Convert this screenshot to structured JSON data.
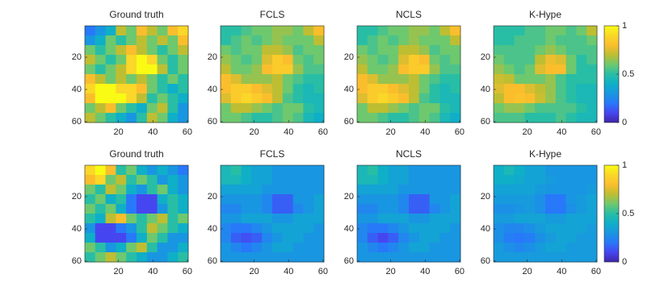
{
  "chart_data": [
    {
      "type": "heatmap",
      "title": "Ground truth",
      "colormap": "parula",
      "clim": [
        0,
        1
      ],
      "xlim": [
        0.5,
        60.5
      ],
      "ylim": [
        0.5,
        60.5
      ],
      "y_reversed": true,
      "xticks": [
        20,
        40,
        60
      ],
      "yticks": [
        20,
        40,
        60
      ],
      "z": [
        [
          0.2,
          0.3,
          0.4,
          0.7,
          0.6,
          0.8,
          0.7,
          0.6,
          0.8,
          0.9
        ],
        [
          0.3,
          0.4,
          0.6,
          0.5,
          0.6,
          0.7,
          0.6,
          0.7,
          0.6,
          0.8
        ],
        [
          0.6,
          0.5,
          0.6,
          0.7,
          0.8,
          0.7,
          0.6,
          0.5,
          0.6,
          0.7
        ],
        [
          0.7,
          0.6,
          0.5,
          0.6,
          0.9,
          1.0,
          0.9,
          0.6,
          0.5,
          0.6
        ],
        [
          0.6,
          0.5,
          0.6,
          0.7,
          0.9,
          1.0,
          1.0,
          0.7,
          0.5,
          0.6
        ],
        [
          0.8,
          0.7,
          0.6,
          0.7,
          0.6,
          0.7,
          0.6,
          0.5,
          0.6,
          0.5
        ],
        [
          0.9,
          1.0,
          1.0,
          0.9,
          0.9,
          0.8,
          0.6,
          0.5,
          0.4,
          0.5
        ],
        [
          0.8,
          1.0,
          1.0,
          1.0,
          0.9,
          0.7,
          0.5,
          0.6,
          0.5,
          0.4
        ],
        [
          0.6,
          0.7,
          0.8,
          0.6,
          0.5,
          0.4,
          0.6,
          0.7,
          0.5,
          0.3
        ],
        [
          0.7,
          0.6,
          0.5,
          0.4,
          0.3,
          0.5,
          0.7,
          0.6,
          0.4,
          0.3
        ]
      ]
    },
    {
      "type": "heatmap",
      "title": "FCLS",
      "colormap": "parula",
      "clim": [
        0,
        1
      ],
      "xlim": [
        0.5,
        60.5
      ],
      "ylim": [
        0.5,
        60.5
      ],
      "y_reversed": true,
      "xticks": [
        20,
        40,
        60
      ],
      "yticks": [
        20,
        40,
        60
      ],
      "z": [
        [
          0.5,
          0.5,
          0.55,
          0.6,
          0.6,
          0.65,
          0.65,
          0.6,
          0.7,
          0.8
        ],
        [
          0.5,
          0.55,
          0.6,
          0.55,
          0.6,
          0.65,
          0.6,
          0.6,
          0.6,
          0.7
        ],
        [
          0.6,
          0.55,
          0.6,
          0.6,
          0.7,
          0.7,
          0.65,
          0.55,
          0.6,
          0.6
        ],
        [
          0.65,
          0.6,
          0.55,
          0.6,
          0.75,
          0.85,
          0.8,
          0.6,
          0.55,
          0.6
        ],
        [
          0.7,
          0.6,
          0.6,
          0.65,
          0.8,
          0.85,
          0.85,
          0.65,
          0.55,
          0.55
        ],
        [
          0.8,
          0.75,
          0.65,
          0.65,
          0.65,
          0.7,
          0.6,
          0.55,
          0.5,
          0.5
        ],
        [
          0.8,
          0.85,
          0.85,
          0.8,
          0.75,
          0.7,
          0.6,
          0.5,
          0.45,
          0.5
        ],
        [
          0.75,
          0.85,
          0.9,
          0.85,
          0.8,
          0.7,
          0.55,
          0.5,
          0.45,
          0.45
        ],
        [
          0.6,
          0.7,
          0.7,
          0.65,
          0.6,
          0.55,
          0.6,
          0.6,
          0.5,
          0.45
        ],
        [
          0.6,
          0.6,
          0.55,
          0.5,
          0.5,
          0.55,
          0.6,
          0.55,
          0.45,
          0.4
        ]
      ]
    },
    {
      "type": "heatmap",
      "title": "NCLS",
      "colormap": "parula",
      "clim": [
        0,
        1
      ],
      "xlim": [
        0.5,
        60.5
      ],
      "ylim": [
        0.5,
        60.5
      ],
      "y_reversed": true,
      "xticks": [
        20,
        40,
        60
      ],
      "yticks": [
        20,
        40,
        60
      ],
      "z": [
        [
          0.5,
          0.5,
          0.55,
          0.6,
          0.6,
          0.65,
          0.65,
          0.6,
          0.7,
          0.8
        ],
        [
          0.5,
          0.55,
          0.6,
          0.55,
          0.6,
          0.65,
          0.6,
          0.6,
          0.6,
          0.7
        ],
        [
          0.6,
          0.55,
          0.6,
          0.6,
          0.7,
          0.7,
          0.65,
          0.55,
          0.6,
          0.6
        ],
        [
          0.65,
          0.6,
          0.55,
          0.6,
          0.75,
          0.85,
          0.8,
          0.6,
          0.55,
          0.6
        ],
        [
          0.7,
          0.6,
          0.6,
          0.65,
          0.8,
          0.85,
          0.85,
          0.65,
          0.55,
          0.55
        ],
        [
          0.8,
          0.75,
          0.65,
          0.65,
          0.65,
          0.7,
          0.6,
          0.55,
          0.5,
          0.5
        ],
        [
          0.8,
          0.85,
          0.85,
          0.8,
          0.75,
          0.7,
          0.6,
          0.5,
          0.45,
          0.5
        ],
        [
          0.75,
          0.85,
          0.9,
          0.85,
          0.8,
          0.7,
          0.55,
          0.5,
          0.45,
          0.45
        ],
        [
          0.6,
          0.7,
          0.7,
          0.65,
          0.6,
          0.55,
          0.6,
          0.6,
          0.5,
          0.45
        ],
        [
          0.6,
          0.6,
          0.55,
          0.5,
          0.5,
          0.55,
          0.6,
          0.55,
          0.45,
          0.4
        ]
      ]
    },
    {
      "type": "heatmap",
      "title": "K-Hype",
      "colormap": "parula",
      "clim": [
        0,
        1
      ],
      "xlim": [
        0.5,
        60.5
      ],
      "ylim": [
        0.5,
        60.5
      ],
      "y_reversed": true,
      "xticks": [
        20,
        40,
        60
      ],
      "yticks": [
        20,
        40,
        60
      ],
      "colorbar_ticks": [
        0,
        0.5,
        1
      ],
      "z": [
        [
          0.5,
          0.5,
          0.5,
          0.55,
          0.55,
          0.6,
          0.6,
          0.55,
          0.6,
          0.7
        ],
        [
          0.5,
          0.5,
          0.55,
          0.55,
          0.55,
          0.6,
          0.55,
          0.55,
          0.55,
          0.6
        ],
        [
          0.55,
          0.55,
          0.55,
          0.55,
          0.6,
          0.65,
          0.6,
          0.55,
          0.55,
          0.55
        ],
        [
          0.6,
          0.55,
          0.55,
          0.55,
          0.7,
          0.78,
          0.75,
          0.6,
          0.5,
          0.55
        ],
        [
          0.65,
          0.6,
          0.55,
          0.6,
          0.75,
          0.8,
          0.8,
          0.6,
          0.5,
          0.5
        ],
        [
          0.72,
          0.7,
          0.6,
          0.6,
          0.6,
          0.65,
          0.55,
          0.5,
          0.5,
          0.5
        ],
        [
          0.75,
          0.8,
          0.8,
          0.75,
          0.7,
          0.65,
          0.55,
          0.5,
          0.45,
          0.45
        ],
        [
          0.7,
          0.8,
          0.82,
          0.8,
          0.72,
          0.65,
          0.55,
          0.5,
          0.45,
          0.45
        ],
        [
          0.6,
          0.65,
          0.65,
          0.6,
          0.55,
          0.55,
          0.55,
          0.55,
          0.5,
          0.45
        ],
        [
          0.55,
          0.55,
          0.55,
          0.5,
          0.5,
          0.5,
          0.55,
          0.5,
          0.45,
          0.45
        ]
      ]
    },
    {
      "type": "heatmap",
      "title": "Ground truth",
      "colormap": "parula",
      "clim": [
        0,
        1
      ],
      "xlim": [
        0.5,
        60.5
      ],
      "ylim": [
        0.5,
        60.5
      ],
      "y_reversed": true,
      "xticks": [
        20,
        40,
        60
      ],
      "yticks": [
        20,
        40,
        60
      ],
      "z": [
        [
          0.9,
          1.0,
          0.8,
          0.5,
          0.6,
          0.4,
          0.3,
          0.4,
          0.3,
          0.2
        ],
        [
          0.8,
          0.9,
          0.6,
          0.7,
          0.5,
          0.6,
          0.5,
          0.3,
          0.4,
          0.3
        ],
        [
          0.6,
          0.5,
          0.7,
          0.6,
          0.4,
          0.3,
          0.5,
          0.6,
          0.4,
          0.3
        ],
        [
          0.5,
          0.6,
          0.4,
          0.5,
          0.2,
          0.1,
          0.1,
          0.4,
          0.5,
          0.4
        ],
        [
          0.6,
          0.5,
          0.6,
          0.4,
          0.2,
          0.1,
          0.1,
          0.3,
          0.5,
          0.4
        ],
        [
          0.5,
          0.4,
          0.7,
          0.8,
          0.6,
          0.5,
          0.6,
          0.7,
          0.5,
          0.6
        ],
        [
          0.3,
          0.1,
          0.1,
          0.2,
          0.3,
          0.5,
          0.7,
          0.6,
          0.5,
          0.4
        ],
        [
          0.4,
          0.1,
          0.1,
          0.1,
          0.2,
          0.4,
          0.6,
          0.5,
          0.3,
          0.3
        ],
        [
          0.6,
          0.5,
          0.3,
          0.4,
          0.6,
          0.7,
          0.5,
          0.3,
          0.3,
          0.4
        ],
        [
          0.5,
          0.6,
          0.7,
          0.6,
          0.5,
          0.4,
          0.3,
          0.3,
          0.4,
          0.5
        ]
      ]
    },
    {
      "type": "heatmap",
      "title": "FCLS",
      "colormap": "parula",
      "clim": [
        0,
        1
      ],
      "xlim": [
        0.5,
        60.5
      ],
      "ylim": [
        0.5,
        60.5
      ],
      "y_reversed": true,
      "xticks": [
        20,
        40,
        60
      ],
      "yticks": [
        20,
        40,
        60
      ],
      "z": [
        [
          0.45,
          0.5,
          0.4,
          0.35,
          0.35,
          0.3,
          0.3,
          0.3,
          0.3,
          0.3
        ],
        [
          0.45,
          0.45,
          0.4,
          0.35,
          0.35,
          0.3,
          0.3,
          0.3,
          0.3,
          0.3
        ],
        [
          0.35,
          0.35,
          0.35,
          0.35,
          0.3,
          0.3,
          0.3,
          0.3,
          0.3,
          0.3
        ],
        [
          0.3,
          0.3,
          0.3,
          0.3,
          0.25,
          0.15,
          0.15,
          0.3,
          0.3,
          0.35
        ],
        [
          0.25,
          0.25,
          0.3,
          0.3,
          0.25,
          0.15,
          0.15,
          0.25,
          0.3,
          0.35
        ],
        [
          0.3,
          0.3,
          0.35,
          0.35,
          0.35,
          0.3,
          0.3,
          0.35,
          0.35,
          0.35
        ],
        [
          0.25,
          0.2,
          0.2,
          0.25,
          0.3,
          0.35,
          0.35,
          0.35,
          0.35,
          0.3
        ],
        [
          0.25,
          0.15,
          0.12,
          0.15,
          0.25,
          0.3,
          0.35,
          0.35,
          0.3,
          0.3
        ],
        [
          0.3,
          0.25,
          0.2,
          0.25,
          0.3,
          0.35,
          0.35,
          0.3,
          0.3,
          0.3
        ],
        [
          0.3,
          0.3,
          0.3,
          0.3,
          0.3,
          0.3,
          0.3,
          0.3,
          0.3,
          0.3
        ]
      ]
    },
    {
      "type": "heatmap",
      "title": "NCLS",
      "colormap": "parula",
      "clim": [
        0,
        1
      ],
      "xlim": [
        0.5,
        60.5
      ],
      "ylim": [
        0.5,
        60.5
      ],
      "y_reversed": true,
      "xticks": [
        20,
        40,
        60
      ],
      "yticks": [
        20,
        40,
        60
      ],
      "z": [
        [
          0.45,
          0.5,
          0.4,
          0.35,
          0.35,
          0.3,
          0.3,
          0.3,
          0.3,
          0.3
        ],
        [
          0.45,
          0.45,
          0.4,
          0.35,
          0.35,
          0.3,
          0.3,
          0.3,
          0.3,
          0.3
        ],
        [
          0.35,
          0.35,
          0.35,
          0.35,
          0.3,
          0.3,
          0.3,
          0.3,
          0.3,
          0.3
        ],
        [
          0.3,
          0.3,
          0.3,
          0.3,
          0.25,
          0.15,
          0.15,
          0.3,
          0.3,
          0.35
        ],
        [
          0.25,
          0.25,
          0.3,
          0.3,
          0.25,
          0.15,
          0.15,
          0.25,
          0.3,
          0.35
        ],
        [
          0.3,
          0.3,
          0.35,
          0.35,
          0.35,
          0.3,
          0.3,
          0.35,
          0.35,
          0.35
        ],
        [
          0.25,
          0.2,
          0.2,
          0.25,
          0.3,
          0.35,
          0.35,
          0.35,
          0.35,
          0.3
        ],
        [
          0.25,
          0.15,
          0.1,
          0.15,
          0.25,
          0.3,
          0.35,
          0.35,
          0.3,
          0.3
        ],
        [
          0.3,
          0.25,
          0.2,
          0.25,
          0.3,
          0.35,
          0.35,
          0.3,
          0.3,
          0.3
        ],
        [
          0.3,
          0.3,
          0.3,
          0.3,
          0.3,
          0.3,
          0.3,
          0.3,
          0.3,
          0.3
        ]
      ]
    },
    {
      "type": "heatmap",
      "title": "K-Hype",
      "colormap": "parula",
      "clim": [
        0,
        1
      ],
      "xlim": [
        0.5,
        60.5
      ],
      "ylim": [
        0.5,
        60.5
      ],
      "y_reversed": true,
      "xticks": [
        20,
        40,
        60
      ],
      "yticks": [
        20,
        40,
        60
      ],
      "colorbar_ticks": [
        0,
        0.5,
        1
      ],
      "z": [
        [
          0.4,
          0.45,
          0.4,
          0.35,
          0.35,
          0.3,
          0.3,
          0.3,
          0.3,
          0.3
        ],
        [
          0.4,
          0.4,
          0.38,
          0.35,
          0.35,
          0.32,
          0.3,
          0.3,
          0.3,
          0.3
        ],
        [
          0.35,
          0.35,
          0.35,
          0.35,
          0.32,
          0.3,
          0.3,
          0.3,
          0.3,
          0.32
        ],
        [
          0.32,
          0.32,
          0.32,
          0.32,
          0.28,
          0.2,
          0.2,
          0.3,
          0.32,
          0.35
        ],
        [
          0.28,
          0.28,
          0.3,
          0.32,
          0.28,
          0.2,
          0.2,
          0.28,
          0.32,
          0.35
        ],
        [
          0.32,
          0.32,
          0.35,
          0.35,
          0.35,
          0.32,
          0.32,
          0.35,
          0.35,
          0.35
        ],
        [
          0.28,
          0.25,
          0.25,
          0.28,
          0.32,
          0.35,
          0.35,
          0.35,
          0.35,
          0.32
        ],
        [
          0.28,
          0.22,
          0.2,
          0.22,
          0.28,
          0.32,
          0.35,
          0.35,
          0.32,
          0.32
        ],
        [
          0.32,
          0.28,
          0.25,
          0.28,
          0.32,
          0.35,
          0.35,
          0.32,
          0.32,
          0.32
        ],
        [
          0.32,
          0.32,
          0.32,
          0.32,
          0.32,
          0.32,
          0.32,
          0.32,
          0.32,
          0.32
        ]
      ]
    }
  ]
}
